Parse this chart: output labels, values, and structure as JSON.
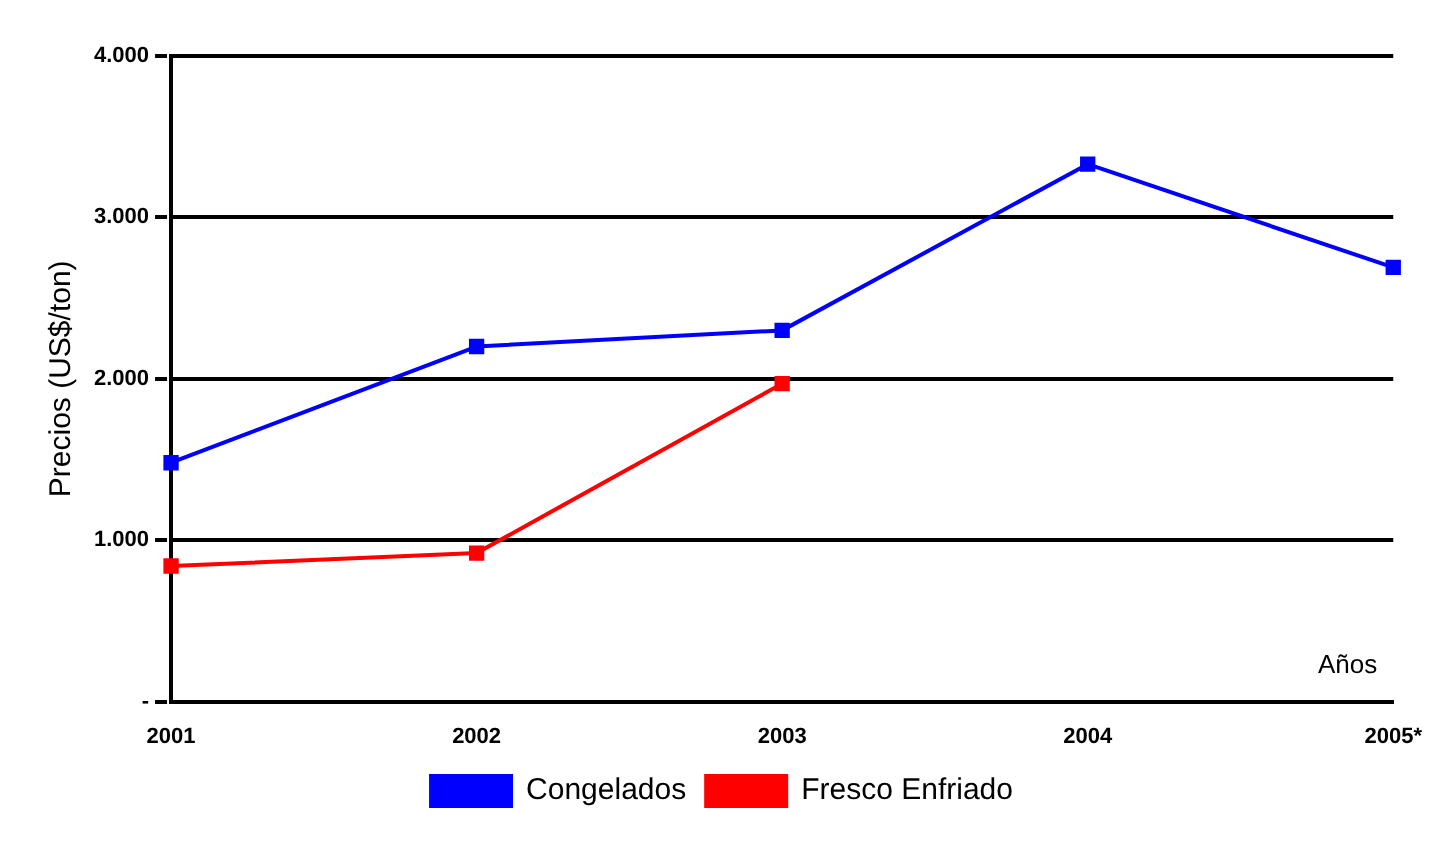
{
  "chart_data": {
    "type": "line",
    "ylabel": "Precios (US$/ton)",
    "categories": [
      "2001",
      "2002",
      "2003",
      "2004",
      "2005*"
    ],
    "series": [
      {
        "name": "Congelados",
        "color": "#0000ff",
        "values": [
          1480,
          2200,
          2300,
          3330,
          2690
        ]
      },
      {
        "name": "Fresco Enfriado",
        "color": "#ff0000",
        "values": [
          840,
          920,
          1970,
          null,
          null
        ]
      }
    ],
    "ylim": [
      0,
      4000
    ],
    "yticks": [
      {
        "value": 0,
        "label": "-"
      },
      {
        "value": 1000,
        "label": "1.000"
      },
      {
        "value": 2000,
        "label": "2.000"
      },
      {
        "value": 3000,
        "label": "3.000"
      },
      {
        "value": 4000,
        "label": "4.000"
      }
    ],
    "grid": "y",
    "legend": "bottom",
    "marker": "square",
    "line_style": "solid",
    "annotations": [
      "Años"
    ]
  }
}
